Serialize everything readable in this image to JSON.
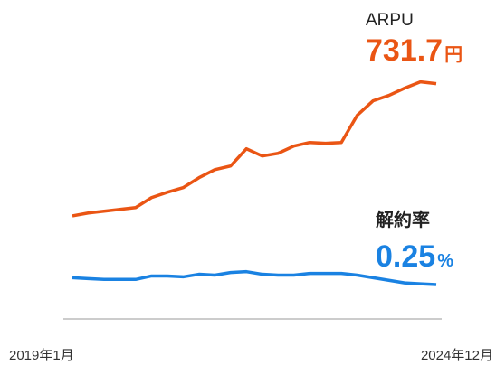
{
  "chart_data": {
    "type": "line",
    "categories": [
      "2019年1月",
      null,
      null,
      null,
      null,
      null,
      null,
      null,
      null,
      null,
      null,
      null,
      null,
      null,
      null,
      null,
      null,
      null,
      null,
      null,
      null,
      null,
      null,
      "2024年12月"
    ],
    "series": [
      {
        "name": "ARPU",
        "unit": "円",
        "color": "#ea5514",
        "values": [
          552.2,
          556.1,
          558.6,
          561.0,
          563.5,
          577.0,
          584.3,
          590.5,
          604.0,
          615.0,
          620.0,
          643.3,
          633.5,
          637.1,
          647.0,
          651.9,
          650.7,
          651.9,
          688.7,
          708.4,
          715.7,
          725.6,
          734.2,
          731.7
        ]
      },
      {
        "name": "解約率",
        "unit": "%",
        "color": "#1a82e2",
        "axis": "y2",
        "values": [
          0.29,
          0.285,
          0.28,
          0.28,
          0.28,
          0.3,
          0.3,
          0.295,
          0.31,
          0.305,
          0.32,
          0.325,
          0.31,
          0.305,
          0.305,
          0.315,
          0.315,
          0.315,
          0.305,
          0.29,
          0.275,
          0.26,
          0.255,
          0.25
        ]
      }
    ],
    "ylim": [
      400,
      800
    ],
    "y2lim": [
      0,
      1.7
    ]
  }
}
